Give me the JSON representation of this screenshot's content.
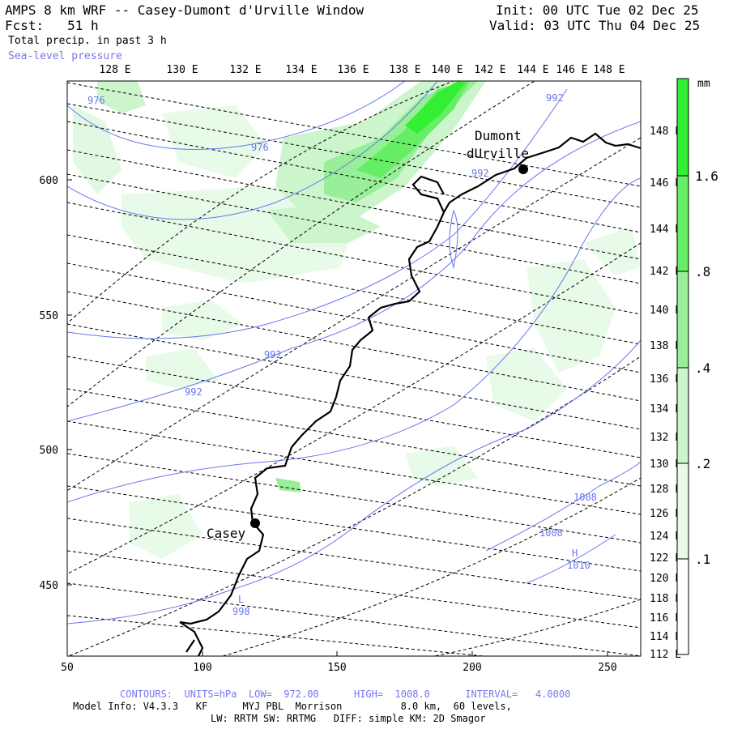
{
  "header": {
    "title": "AMPS 8 km WRF -- Casey-Dumont d'Urville Window",
    "fcst_label": "Fcst:",
    "fcst_value": "51 h",
    "field": "Total precip. in past 3 h",
    "overlay": "Sea-level pressure",
    "init": "Init: 00 UTC Tue 02 Dec 25",
    "valid": "Valid: 03 UTC Thu 04 Dec 25"
  },
  "axes": {
    "top_lon_labels": [
      "128 E",
      "130 E",
      "132 E",
      "134 E",
      "136 E",
      "138 E",
      "140 E",
      "142 E",
      "144 E",
      "146 E",
      "148 E"
    ],
    "right_lon_labels": [
      "148 E",
      "146 E",
      "144 E",
      "142 E",
      "140 E",
      "138 E",
      "136 E",
      "134 E",
      "132 E",
      "130 E",
      "128 E",
      "126 E",
      "124 E",
      "122 E",
      "120 E",
      "118 E",
      "116 E",
      "114 E",
      "112 E"
    ],
    "left_y_labels": [
      "600",
      "550",
      "500",
      "450"
    ],
    "bottom_x_labels": [
      "50",
      "100",
      "150",
      "200",
      "250"
    ]
  },
  "colorbar": {
    "unit": "mm",
    "labels": [
      "1.6",
      ".8",
      ".4",
      ".2",
      ".1"
    ],
    "colors": [
      "#33ee33",
      "#66ee66",
      "#99ee99",
      "#ccf5cc",
      "#e8fae8",
      "#ffffff"
    ]
  },
  "places": [
    {
      "name_line1": "Dumont",
      "name_line2": "dUrville"
    },
    {
      "name_line1": "Casey"
    }
  ],
  "isobar_labels": [
    "976",
    "976",
    "992",
    "992",
    "992",
    "992",
    "1008",
    "1008",
    "1010",
    "998"
  ],
  "pressure_marks": [
    "H",
    "L"
  ],
  "footer": {
    "contours": "CONTOURS:  UNITS=hPa  LOW=  972.00      HIGH=  1008.0      INTERVAL=   4.0000",
    "model_info": "Model Info: V4.3.3   KF      MYJ PBL  Morrison          8.0 km,  60 levels,",
    "physics": "LW: RRTM SW: RRTMG   DIFF: simple KM: 2D Smagor"
  }
}
